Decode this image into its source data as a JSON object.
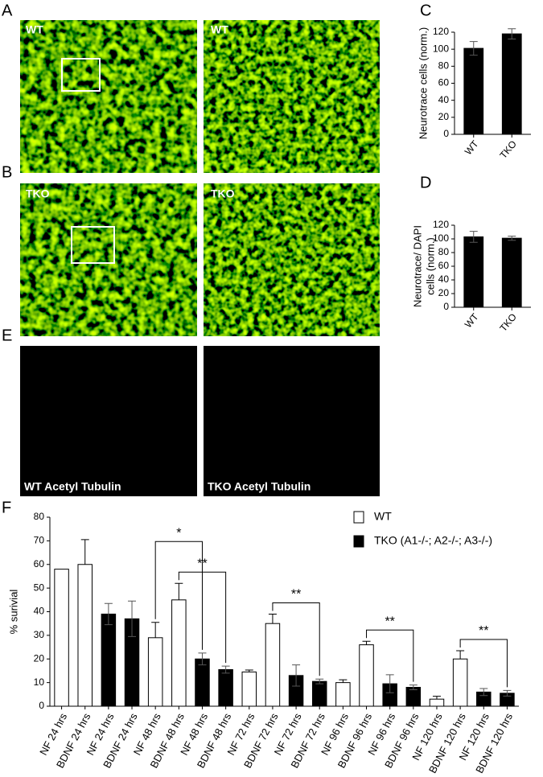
{
  "panel_labels": [
    "A",
    "B",
    "C",
    "D",
    "E",
    "F"
  ],
  "images": [
    {
      "label": "WT"
    },
    {
      "label": "WT"
    },
    {
      "label": "TKO"
    },
    {
      "label": "TKO"
    },
    {
      "label": "WT Acetyl Tubulin"
    },
    {
      "label": "TKO Acetyl Tubulin"
    }
  ],
  "chart_data": [
    {
      "type": "bar",
      "categories": [
        "WT",
        "TKO"
      ],
      "series": [
        {
          "color": "#000000",
          "values": [
            101,
            118
          ],
          "errors": [
            8,
            6
          ]
        }
      ],
      "y_label": "Neurotrace cells (norm.)",
      "ylim": [
        0,
        120
      ],
      "yticks": [
        0,
        20,
        40,
        60,
        80,
        100,
        120
      ]
    },
    {
      "type": "bar",
      "categories": [
        "WT",
        "TKO"
      ],
      "series": [
        {
          "color": "#000000",
          "values": [
            103,
            101
          ],
          "errors": [
            8,
            3
          ]
        }
      ],
      "y_label": [
        "Neurotrace/ DAPI",
        "cells (norm.)"
      ],
      "ylim": [
        0,
        120
      ],
      "yticks": [
        0,
        20,
        40,
        60,
        80,
        100,
        120
      ]
    },
    {
      "type": "bar",
      "categories": [
        "NF  24 hrs",
        "BDNF 24 hrs",
        "NF  24 hrs",
        "BDNF 24 hrs",
        "NF  48 hrs",
        "BDNF 48 hrs",
        "NF  48 hrs",
        "BDNF 48 hrs",
        "NF  72 hrs",
        "BDNF 72 hrs",
        "NF  72 hrs",
        "BDNF 72 hrs",
        "NF  96 hrs",
        "BDNF 96 hrs",
        "NF  96 hrs",
        "BDNF 96 hrs",
        "NF  120 hrs",
        "BDNF 120 hrs",
        "NF  120 hrs",
        "BDNF 120 hrs"
      ],
      "series": [
        {
          "name": "WT",
          "color": "#ffffff",
          "values": [
            58,
            60,
            null,
            null,
            29,
            45,
            null,
            null,
            14.5,
            35,
            null,
            null,
            10,
            26,
            null,
            null,
            3,
            20,
            null,
            null
          ],
          "errors": [
            null,
            10.5,
            null,
            null,
            6.5,
            7,
            null,
            null,
            0.8,
            4,
            null,
            null,
            1.2,
            1.5,
            null,
            null,
            1.2,
            3.5,
            null,
            null
          ]
        },
        {
          "name": "TKO (A1-/-; A2-/-; A3-/-)",
          "color": "#000000",
          "values": [
            null,
            null,
            39,
            37,
            null,
            null,
            20,
            15.5,
            null,
            null,
            13,
            10.5,
            null,
            null,
            9.5,
            8,
            null,
            null,
            6,
            5.5
          ],
          "errors": [
            null,
            null,
            4.5,
            7.5,
            null,
            null,
            2.5,
            1.5,
            null,
            null,
            4.5,
            1,
            null,
            null,
            3.8,
            1,
            null,
            null,
            1.5,
            1.2
          ]
        }
      ],
      "y_label": "% surivial",
      "ylim": [
        0,
        80
      ],
      "yticks": [
        0,
        10,
        20,
        30,
        40,
        50,
        60,
        70,
        80
      ],
      "annotations": [
        {
          "text": "*",
          "between": [
            4,
            6
          ]
        },
        {
          "text": "**",
          "between": [
            5,
            7
          ]
        },
        {
          "text": "**",
          "between": [
            9,
            11
          ]
        },
        {
          "text": "**",
          "between": [
            13,
            15
          ]
        },
        {
          "text": "**",
          "between": [
            17,
            19
          ]
        }
      ],
      "legend": "top-right"
    }
  ]
}
